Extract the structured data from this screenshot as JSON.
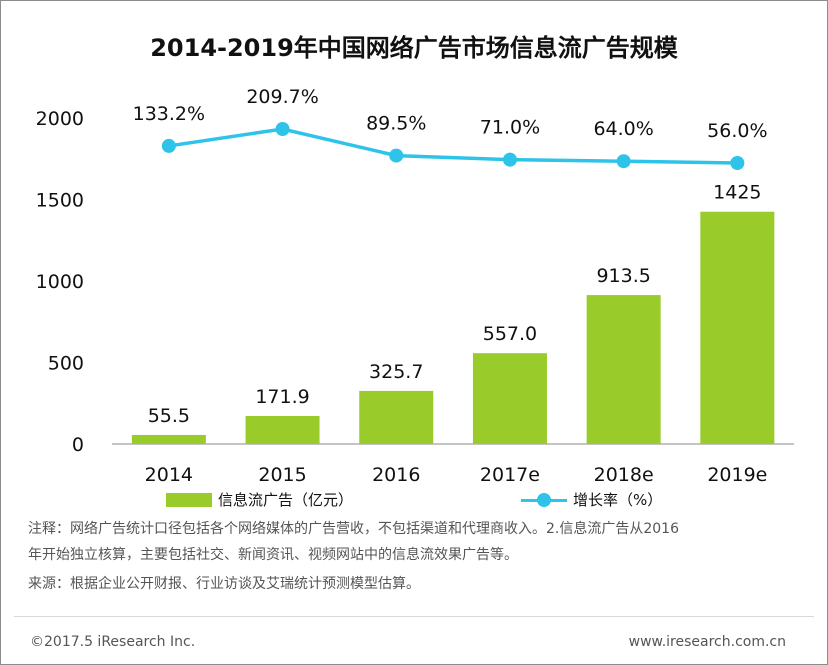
{
  "title": "2014-2019年中国网络广告市场信息流广告规模",
  "chart_data": {
    "type": "bar+line",
    "categories": [
      "2014",
      "2015",
      "2016",
      "2017e",
      "2018e",
      "2019e"
    ],
    "series": [
      {
        "name": "信息流广告（亿元）",
        "type": "bar",
        "values": [
          55.5,
          171.9,
          325.7,
          557.0,
          913.5,
          1425
        ],
        "labels": [
          "55.5",
          "171.9",
          "325.7",
          "557.0",
          "913.5",
          "1425"
        ]
      },
      {
        "name": "增长率（%）",
        "type": "line",
        "values": [
          133.2,
          209.7,
          89.5,
          71.0,
          64.0,
          56.0
        ],
        "labels": [
          "133.2%",
          "209.7%",
          "89.5%",
          "71.0%",
          "64.0%",
          "56.0%"
        ]
      }
    ],
    "ylim": [
      0,
      2000
    ],
    "yticks": [
      "0",
      "500",
      "1000",
      "1500",
      "2000"
    ],
    "grid": false,
    "legend_position": "bottom",
    "colors": {
      "bar": "#99cc2a",
      "line": "#2ec4ea"
    }
  },
  "legend": {
    "bar_label": "信息流广告（亿元）",
    "line_label": "增长率（%）"
  },
  "notes": {
    "line1": "注释：网络广告统计口径包括各个网络媒体的广告营收，不包括渠道和代理商收入。2.信息流广告从2016",
    "line2": "年开始独立核算，主要包括社交、新闻资讯、视频网站中的信息流效果广告等。",
    "source": "来源：根据企业公开财报、行业访谈及艾瑞统计预测模型估算。"
  },
  "footer": {
    "copyright": "©2017.5 iResearch Inc.",
    "website": "www.iresearch.com.cn"
  }
}
